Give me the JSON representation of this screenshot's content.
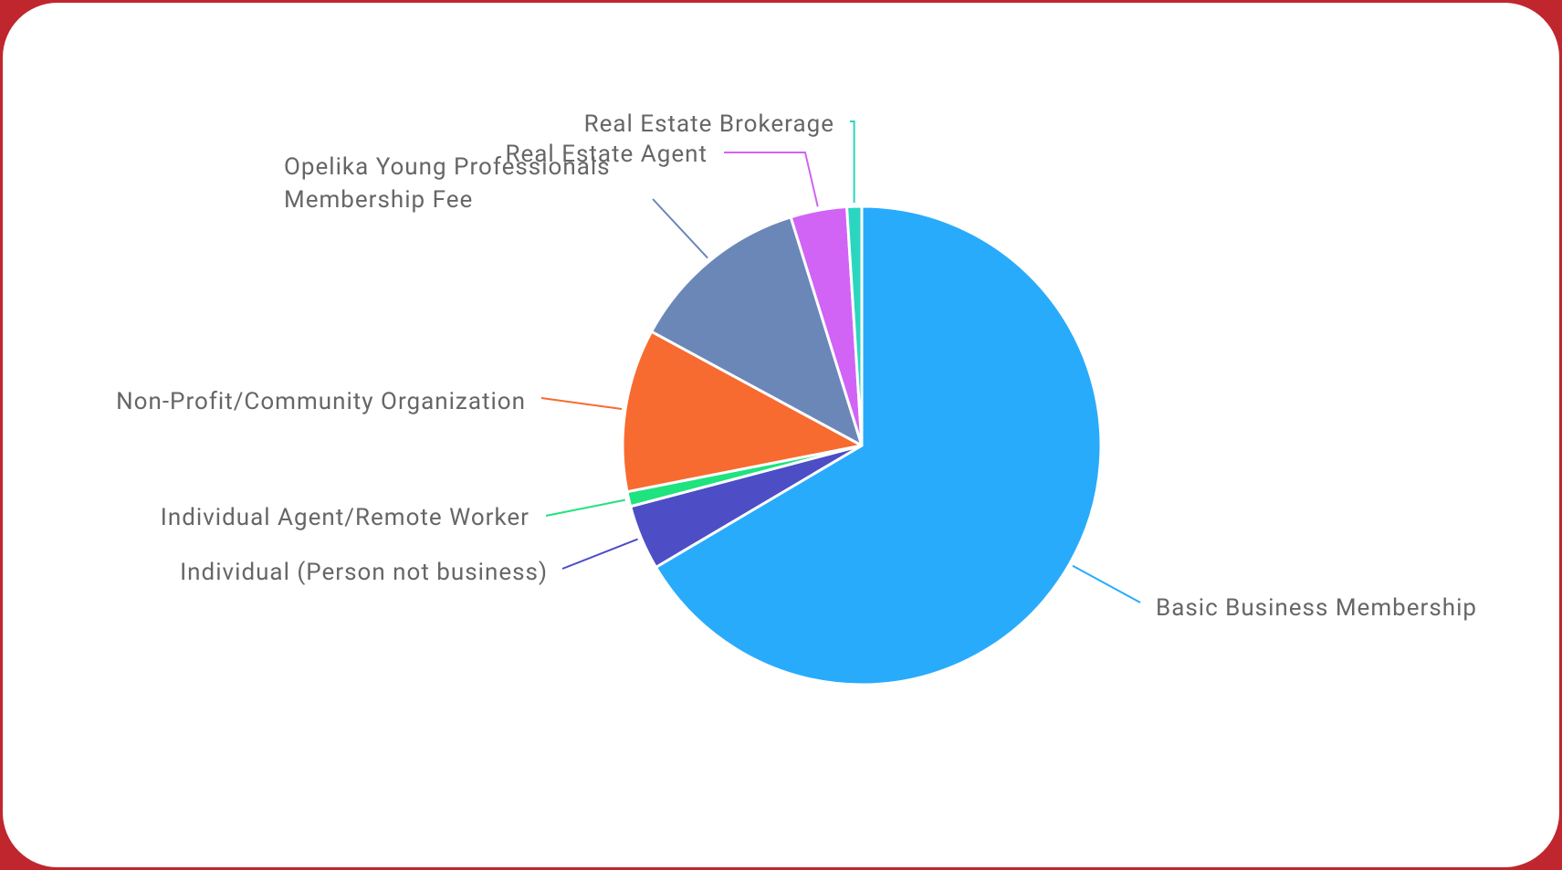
{
  "chart_data": {
    "type": "pie",
    "categories": [
      "Basic Business Membership",
      "Individual (Person not business)",
      "Individual Agent/Remote Worker",
      "Non-Profit/Community Organization",
      "Opelika Young Professionals Membership Fee",
      "Real Estate Agent",
      "Real Estate Brokerage"
    ],
    "values": [
      66.5,
      4.4,
      1,
      11,
      12.3,
      3.8,
      1
    ],
    "colors": [
      "#29abfc",
      "#4d4dc6",
      "#1ee37e",
      "#f76b30",
      "#6a87b8",
      "#d163f5",
      "#2ad6c0"
    ]
  }
}
